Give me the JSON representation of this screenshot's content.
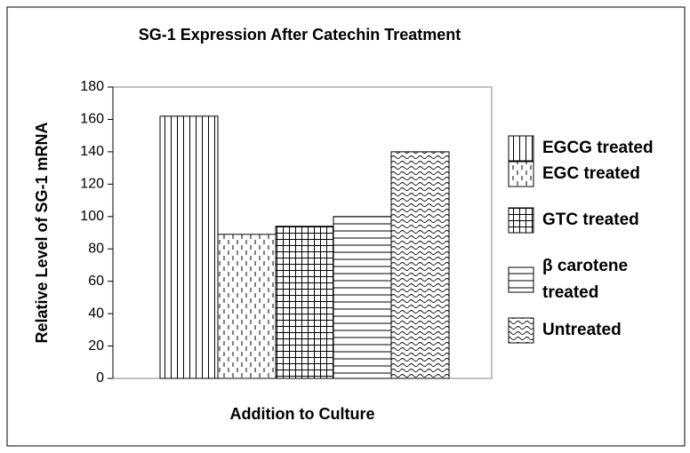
{
  "chart_data": {
    "type": "bar",
    "title": "SG-1 Expression After Catechin Treatment",
    "x_label": "Addition to Culture",
    "y_label": "Relative Level of SG-1 mRNA",
    "series": [
      {
        "name": "EGCG treated",
        "color": "#000000",
        "pattern": "vertical",
        "values": [
          162
        ]
      },
      {
        "name": "EGC treated",
        "color": "#000000",
        "pattern": "dashed-vertical",
        "values": [
          89
        ]
      },
      {
        "name": "GTC treated",
        "color": "#000000",
        "pattern": "grid",
        "values": [
          94
        ]
      },
      {
        "name": "β carotene treated",
        "color": "#000000",
        "pattern": "horizontal",
        "values": [
          100
        ]
      },
      {
        "name": "Untreated",
        "color": "#000000",
        "pattern": "wave",
        "values": [
          140
        ]
      }
    ],
    "ylim": [
      0,
      180
    ],
    "yticks": [
      0,
      20,
      40,
      60,
      80,
      100,
      120,
      140,
      160,
      180
    ],
    "legend": "right"
  }
}
